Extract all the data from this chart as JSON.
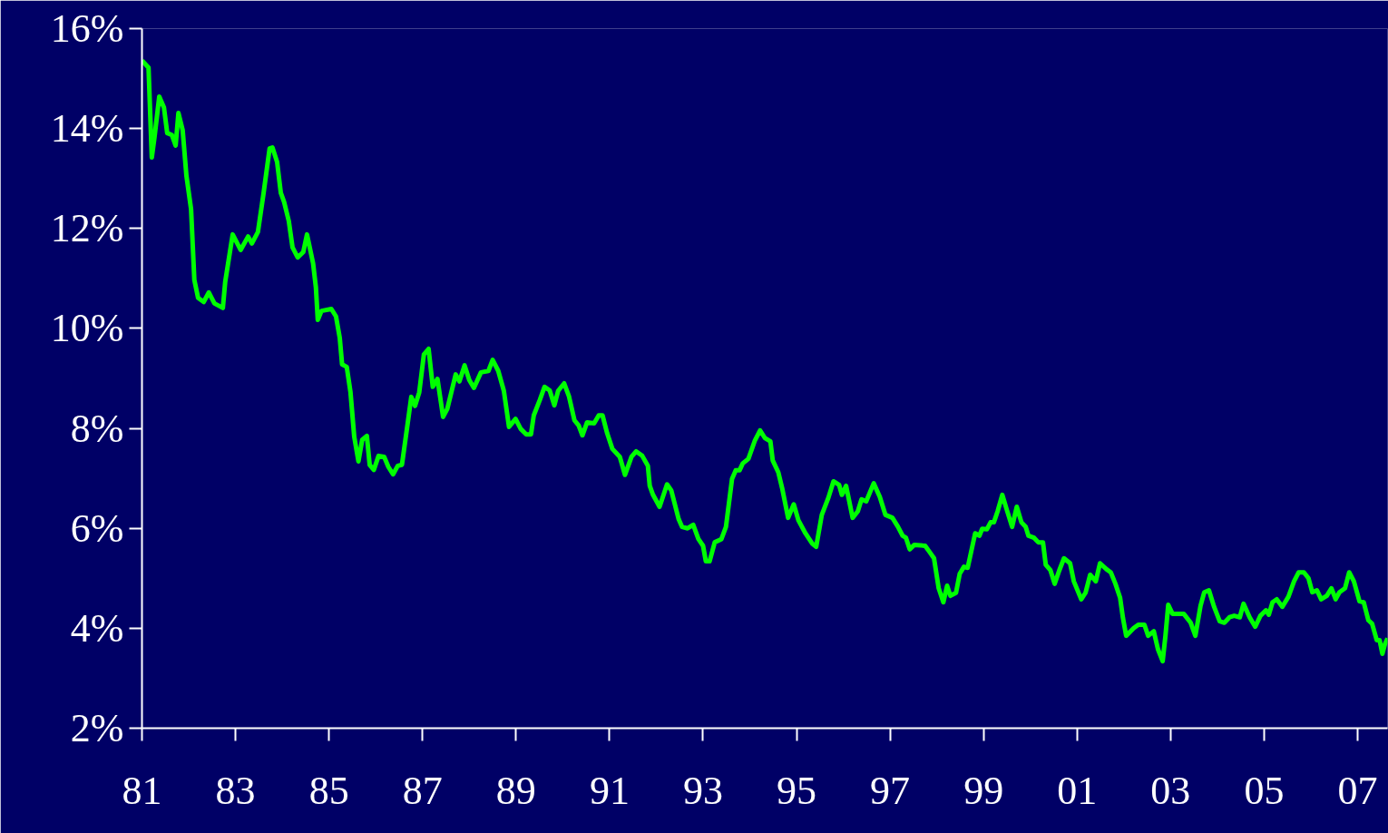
{
  "chart_data": {
    "type": "line",
    "xlim": [
      1981,
      2007.64
    ],
    "ylim": [
      2,
      16
    ],
    "xticks": [
      {
        "value": 1981,
        "label": "81"
      },
      {
        "value": 1983,
        "label": "83"
      },
      {
        "value": 1985,
        "label": "85"
      },
      {
        "value": 1987,
        "label": "87"
      },
      {
        "value": 1989,
        "label": "89"
      },
      {
        "value": 1991,
        "label": "91"
      },
      {
        "value": 1993,
        "label": "93"
      },
      {
        "value": 1995,
        "label": "95"
      },
      {
        "value": 1997,
        "label": "97"
      },
      {
        "value": 1999,
        "label": "99"
      },
      {
        "value": 2001,
        "label": "01"
      },
      {
        "value": 2003,
        "label": "03"
      },
      {
        "value": 2005,
        "label": "05"
      },
      {
        "value": 2007,
        "label": "07"
      }
    ],
    "yticks": [
      {
        "value": 2,
        "label": "2%"
      },
      {
        "value": 4,
        "label": "4%"
      },
      {
        "value": 6,
        "label": "6%"
      },
      {
        "value": 8,
        "label": "8%"
      },
      {
        "value": 10,
        "label": "10%"
      },
      {
        "value": 12,
        "label": "12%"
      },
      {
        "value": 14,
        "label": "14%"
      },
      {
        "value": 16,
        "label": "16%"
      }
    ],
    "grid": false,
    "marker": "none",
    "line_style": "solid",
    "series": [
      {
        "color": "#00ff00",
        "x": [
          1981.0,
          1981.14,
          1981.21,
          1981.27,
          1981.37,
          1981.47,
          1981.54,
          1981.64,
          1981.72,
          1981.78,
          1981.87,
          1981.95,
          1982.05,
          1982.12,
          1982.2,
          1982.32,
          1982.43,
          1982.55,
          1982.73,
          1982.78,
          1982.94,
          1983.11,
          1983.27,
          1983.35,
          1983.48,
          1983.6,
          1983.73,
          1983.79,
          1983.89,
          1983.97,
          1984.04,
          1984.14,
          1984.22,
          1984.33,
          1984.45,
          1984.53,
          1984.66,
          1984.72,
          1984.76,
          1984.84,
          1985.05,
          1985.15,
          1985.23,
          1985.28,
          1985.38,
          1985.46,
          1985.54,
          1985.63,
          1985.71,
          1985.81,
          1985.87,
          1985.96,
          1986.06,
          1986.18,
          1986.27,
          1986.37,
          1986.47,
          1986.56,
          1986.68,
          1986.76,
          1986.84,
          1986.93,
          1987.03,
          1987.13,
          1987.22,
          1987.32,
          1987.44,
          1987.53,
          1987.71,
          1987.79,
          1987.9,
          1988.0,
          1988.1,
          1988.25,
          1988.41,
          1988.5,
          1988.62,
          1988.74,
          1988.85,
          1988.99,
          1989.1,
          1989.22,
          1989.32,
          1989.38,
          1989.51,
          1989.61,
          1989.72,
          1989.82,
          1989.9,
          1990.03,
          1990.13,
          1990.25,
          1990.34,
          1990.42,
          1990.52,
          1990.67,
          1990.77,
          1990.85,
          1990.95,
          1991.06,
          1991.22,
          1991.33,
          1991.47,
          1991.57,
          1991.7,
          1991.82,
          1991.86,
          1991.93,
          1992.07,
          1992.23,
          1992.32,
          1992.48,
          1992.55,
          1992.67,
          1992.79,
          1992.9,
          1993.0,
          1993.06,
          1993.14,
          1993.25,
          1993.39,
          1993.49,
          1993.62,
          1993.7,
          1993.78,
          1993.85,
          1993.97,
          1994.11,
          1994.22,
          1994.32,
          1994.44,
          1994.49,
          1994.61,
          1994.69,
          1994.82,
          1994.94,
          1995.04,
          1995.19,
          1995.33,
          1995.42,
          1995.54,
          1995.68,
          1995.79,
          1995.91,
          1995.97,
          1996.06,
          1996.2,
          1996.31,
          1996.39,
          1996.49,
          1996.65,
          1996.78,
          1996.9,
          1997.05,
          1997.17,
          1997.27,
          1997.34,
          1997.42,
          1997.52,
          1997.75,
          1997.85,
          1997.94,
          1998.04,
          1998.14,
          1998.22,
          1998.29,
          1998.41,
          1998.49,
          1998.58,
          1998.66,
          1998.82,
          1998.91,
          1998.97,
          1999.07,
          1999.15,
          1999.22,
          1999.3,
          1999.4,
          1999.5,
          1999.61,
          1999.71,
          1999.81,
          1999.9,
          1999.96,
          2000.08,
          2000.17,
          2000.27,
          2000.33,
          2000.43,
          2000.52,
          2000.62,
          2000.72,
          2000.85,
          2000.93,
          2001.09,
          2001.18,
          2001.28,
          2001.4,
          2001.49,
          2001.63,
          2001.72,
          2001.82,
          2001.92,
          2001.98,
          2002.05,
          2002.21,
          2002.31,
          2002.44,
          2002.52,
          2002.64,
          2002.73,
          2002.83,
          2002.89,
          2002.95,
          2003.04,
          2003.28,
          2003.43,
          2003.53,
          2003.64,
          2003.72,
          2003.82,
          2003.93,
          2004.05,
          2004.15,
          2004.26,
          2004.36,
          2004.48,
          2004.56,
          2004.69,
          2004.81,
          2004.92,
          2005.04,
          2005.1,
          2005.18,
          2005.27,
          2005.39,
          2005.52,
          2005.64,
          2005.74,
          2005.85,
          2005.95,
          2006.03,
          2006.13,
          2006.22,
          2006.34,
          2006.44,
          2006.53,
          2006.61,
          2006.73,
          2006.82,
          2006.92,
          2007.04,
          2007.13,
          2007.23,
          2007.31,
          2007.41,
          2007.47,
          2007.53,
          2007.58,
          2007.64
        ],
        "values": [
          15.36,
          15.22,
          13.42,
          13.84,
          14.64,
          14.42,
          13.91,
          13.87,
          13.66,
          14.31,
          13.97,
          13.06,
          12.39,
          10.97,
          10.61,
          10.53,
          10.72,
          10.5,
          10.41,
          10.93,
          11.88,
          11.57,
          11.84,
          11.7,
          11.93,
          12.7,
          13.6,
          13.62,
          13.33,
          12.71,
          12.53,
          12.15,
          11.62,
          11.42,
          11.53,
          11.88,
          11.3,
          10.82,
          10.17,
          10.35,
          10.39,
          10.24,
          9.81,
          9.28,
          9.23,
          8.72,
          7.83,
          7.34,
          7.77,
          7.85,
          7.27,
          7.17,
          7.45,
          7.43,
          7.23,
          7.08,
          7.25,
          7.27,
          8.08,
          8.63,
          8.45,
          8.72,
          9.48,
          9.59,
          8.83,
          8.99,
          8.23,
          8.39,
          9.08,
          8.94,
          9.26,
          8.97,
          8.81,
          9.12,
          9.15,
          9.37,
          9.15,
          8.75,
          8.03,
          8.19,
          7.99,
          7.88,
          7.88,
          8.26,
          8.57,
          8.83,
          8.76,
          8.46,
          8.75,
          8.9,
          8.65,
          8.16,
          8.06,
          7.86,
          8.12,
          8.1,
          8.26,
          8.26,
          7.9,
          7.59,
          7.43,
          7.07,
          7.43,
          7.54,
          7.45,
          7.25,
          6.85,
          6.67,
          6.43,
          6.88,
          6.76,
          6.18,
          6.03,
          6.0,
          6.07,
          5.79,
          5.65,
          5.34,
          5.34,
          5.72,
          5.78,
          6.03,
          6.99,
          7.16,
          7.16,
          7.3,
          7.39,
          7.76,
          7.96,
          7.81,
          7.74,
          7.36,
          7.12,
          6.81,
          6.21,
          6.48,
          6.16,
          5.9,
          5.7,
          5.63,
          6.27,
          6.61,
          6.94,
          6.87,
          6.67,
          6.85,
          6.21,
          6.34,
          6.58,
          6.54,
          6.9,
          6.63,
          6.27,
          6.21,
          6.03,
          5.85,
          5.81,
          5.58,
          5.67,
          5.65,
          5.52,
          5.4,
          4.8,
          4.52,
          4.85,
          4.65,
          4.71,
          5.09,
          5.23,
          5.21,
          5.9,
          5.85,
          5.99,
          5.98,
          6.12,
          6.12,
          6.34,
          6.67,
          6.36,
          6.03,
          6.43,
          6.12,
          6.03,
          5.85,
          5.81,
          5.72,
          5.72,
          5.27,
          5.16,
          4.89,
          5.16,
          5.4,
          5.3,
          4.94,
          4.58,
          4.71,
          5.07,
          4.94,
          5.3,
          5.18,
          5.12,
          4.89,
          4.61,
          4.21,
          3.85,
          4.0,
          4.07,
          4.07,
          3.85,
          3.94,
          3.58,
          3.34,
          3.85,
          4.47,
          4.29,
          4.29,
          4.11,
          3.85,
          4.45,
          4.72,
          4.76,
          4.43,
          4.14,
          4.11,
          4.22,
          4.25,
          4.22,
          4.49,
          4.22,
          4.03,
          4.25,
          4.36,
          4.27,
          4.52,
          4.58,
          4.43,
          4.63,
          4.94,
          5.12,
          5.12,
          5.0,
          4.72,
          4.76,
          4.58,
          4.65,
          4.8,
          4.58,
          4.72,
          4.8,
          5.12,
          4.94,
          4.54,
          4.52,
          4.16,
          4.09,
          3.76,
          3.76,
          3.49,
          3.67,
          3.8
        ]
      }
    ]
  }
}
